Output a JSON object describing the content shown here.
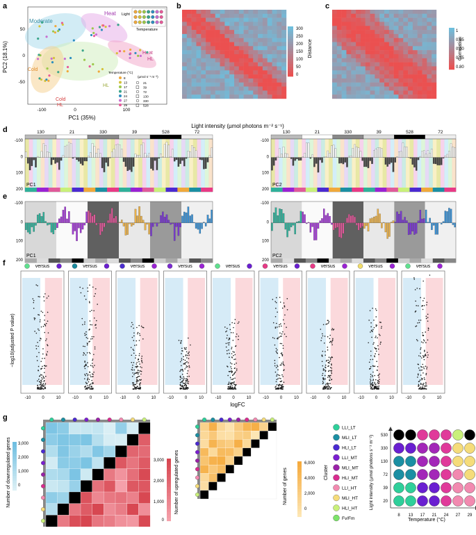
{
  "panel_letters": {
    "a": "a",
    "b": "b",
    "c": "c",
    "d": "d",
    "e": "e",
    "f": "f",
    "g": "g"
  },
  "panel_a": {
    "xlabel": "PC1 (35%)",
    "ylabel": "PC2 (18.1%)",
    "xticks": [
      "-100",
      "0",
      "100"
    ],
    "yticks": [
      "50",
      "0",
      "-50"
    ],
    "region_labels": {
      "moderate": "Moderate",
      "heat": "Heat",
      "heat_hl": "Heat",
      "heat_hl2": "HL",
      "cold": "Cold",
      "cold_hl": "Cold",
      "cold_hl2": "HL",
      "hl": "HL"
    },
    "legend_light": "Light",
    "legend_temperature": "Temperature",
    "temperature_title": "Temperature (°C)",
    "light_title": "(µmol s⁻¹ m⁻²)",
    "temperatures": [
      "8",
      "13",
      "17",
      "21",
      "24",
      "27",
      "29"
    ],
    "light_levels": [
      "21",
      "39",
      "72",
      "130",
      "330",
      "528"
    ],
    "temp_colors": [
      "#f0a93b",
      "#d4c23a",
      "#9bc84a",
      "#3aa58a",
      "#2e8fbf",
      "#c86fd1",
      "#e85b9a"
    ]
  },
  "panel_b": {
    "colorbar_title": "Distance",
    "colorbar_ticks": [
      "300",
      "250",
      "200",
      "150",
      "100",
      "50",
      "0"
    ]
  },
  "panel_c": {
    "colorbar_title": "Correlation",
    "colorbar_ticks": [
      "1",
      "0.95",
      "0.90",
      "0.85",
      "0.80"
    ]
  },
  "panel_d": {
    "title": "Light intensity (µmol photons m⁻² s⁻¹)",
    "group_labels": [
      "130",
      "21",
      "330",
      "39",
      "528",
      "72"
    ],
    "yticks": [
      "-100",
      "0",
      "100",
      "200"
    ],
    "pc1": "PC1",
    "pc2": "PC2"
  },
  "panel_e": {
    "yticks": [
      "-100",
      "0",
      "100",
      "200"
    ],
    "pc1": "PC1",
    "pc2": "PC2"
  },
  "panel_f": {
    "versus": "versus",
    "ylabel": "−log10(adjusted P value)",
    "xlabel": "logFC",
    "xticks": [
      "-10",
      "0",
      "10"
    ],
    "pairs": [
      [
        "#5fe08e",
        "#6a1fd1"
      ],
      [
        "#1b8a9e",
        "#6a1fd1"
      ],
      [
        "#4b2dd1",
        "#9a22d4"
      ],
      [
        "#7b2ad1",
        "#9a22d4"
      ],
      [
        "#5fe08e",
        "#6a1fd1"
      ],
      [
        "#e83a86",
        "#6a1fd1"
      ],
      [
        "#e83a86",
        "#9a22d4"
      ],
      [
        "#f2dd6a",
        "#9a22d4"
      ],
      [
        "#5fe08e",
        "#9a22d4"
      ]
    ]
  },
  "panel_g": {
    "down_label": "Number of downregulated genes",
    "down_ticks": [
      "3,000",
      "2,000",
      "1,000",
      "0"
    ],
    "up_label": "Number of upregulated genes",
    "up_ticks": [
      "3,000",
      "2,000",
      "1,000",
      "0"
    ],
    "genes_label": "Number of genes",
    "genes_ticks": [
      "6,000",
      "4,000",
      "2,000",
      "0"
    ],
    "cluster_title": "Cluster",
    "clusters": [
      {
        "name": "LLI_LT",
        "color": "#2fcf9a"
      },
      {
        "name": "MLI_LT",
        "color": "#1b8fa3"
      },
      {
        "name": "HLI_LT",
        "color": "#4a2ad1"
      },
      {
        "name": "LLI_MT",
        "color": "#7b1fd1"
      },
      {
        "name": "MLI_MT",
        "color": "#9a22a8"
      },
      {
        "name": "HLI_MT",
        "color": "#d92c8f"
      },
      {
        "name": "LLI_HT",
        "color": "#f28ab0"
      },
      {
        "name": "MLI_HT",
        "color": "#f5dc7a"
      },
      {
        "name": "HLI_HT",
        "color": "#c9f07a"
      },
      {
        "name": "Fv/Fm",
        "color": "#7de36a"
      }
    ],
    "grid_ylabel": "Light intensity (µmol photons s⁻¹ m⁻²)",
    "grid_xlabel": "Temperature (°C)",
    "grid_x": [
      "8",
      "13",
      "17",
      "21",
      "24",
      "27",
      "29"
    ],
    "grid_y": [
      "530",
      "330",
      "130",
      "72",
      "39",
      "20"
    ],
    "grid_colors": [
      [
        "#000000",
        "#000000",
        "#e03a9a",
        "#e03a9a",
        "#e03a9a",
        "#c9f07a",
        "#000000"
      ],
      [
        "#6a1fd1",
        "#6a1fd1",
        "#a327b8",
        "#a327b8",
        "#e03a9a",
        "#f5dc7a",
        "#f5dc7a"
      ],
      [
        "#1b8fa3",
        "#1b8fa3",
        "#a327b8",
        "#a327b8",
        "#e03a9a",
        "#f5dc7a",
        "#f5dc7a"
      ],
      [
        "#1b8fa3",
        "#1b8fa3",
        "#a327b8",
        "#a327b8",
        "#e03a9a",
        "#f28ab0",
        "#f5dc7a"
      ],
      [
        "#2fcf9a",
        "#2fcf9a",
        "#6a1fd1",
        "#6a1fd1",
        "#e03a9a",
        "#f28ab0",
        "#f28ab0"
      ],
      [
        "#2fcf9a",
        "#2fcf9a",
        "#6a1fd1",
        "#6a1fd1",
        "#e03a9a",
        "#f28ab0",
        "#f28ab0"
      ]
    ]
  }
}
